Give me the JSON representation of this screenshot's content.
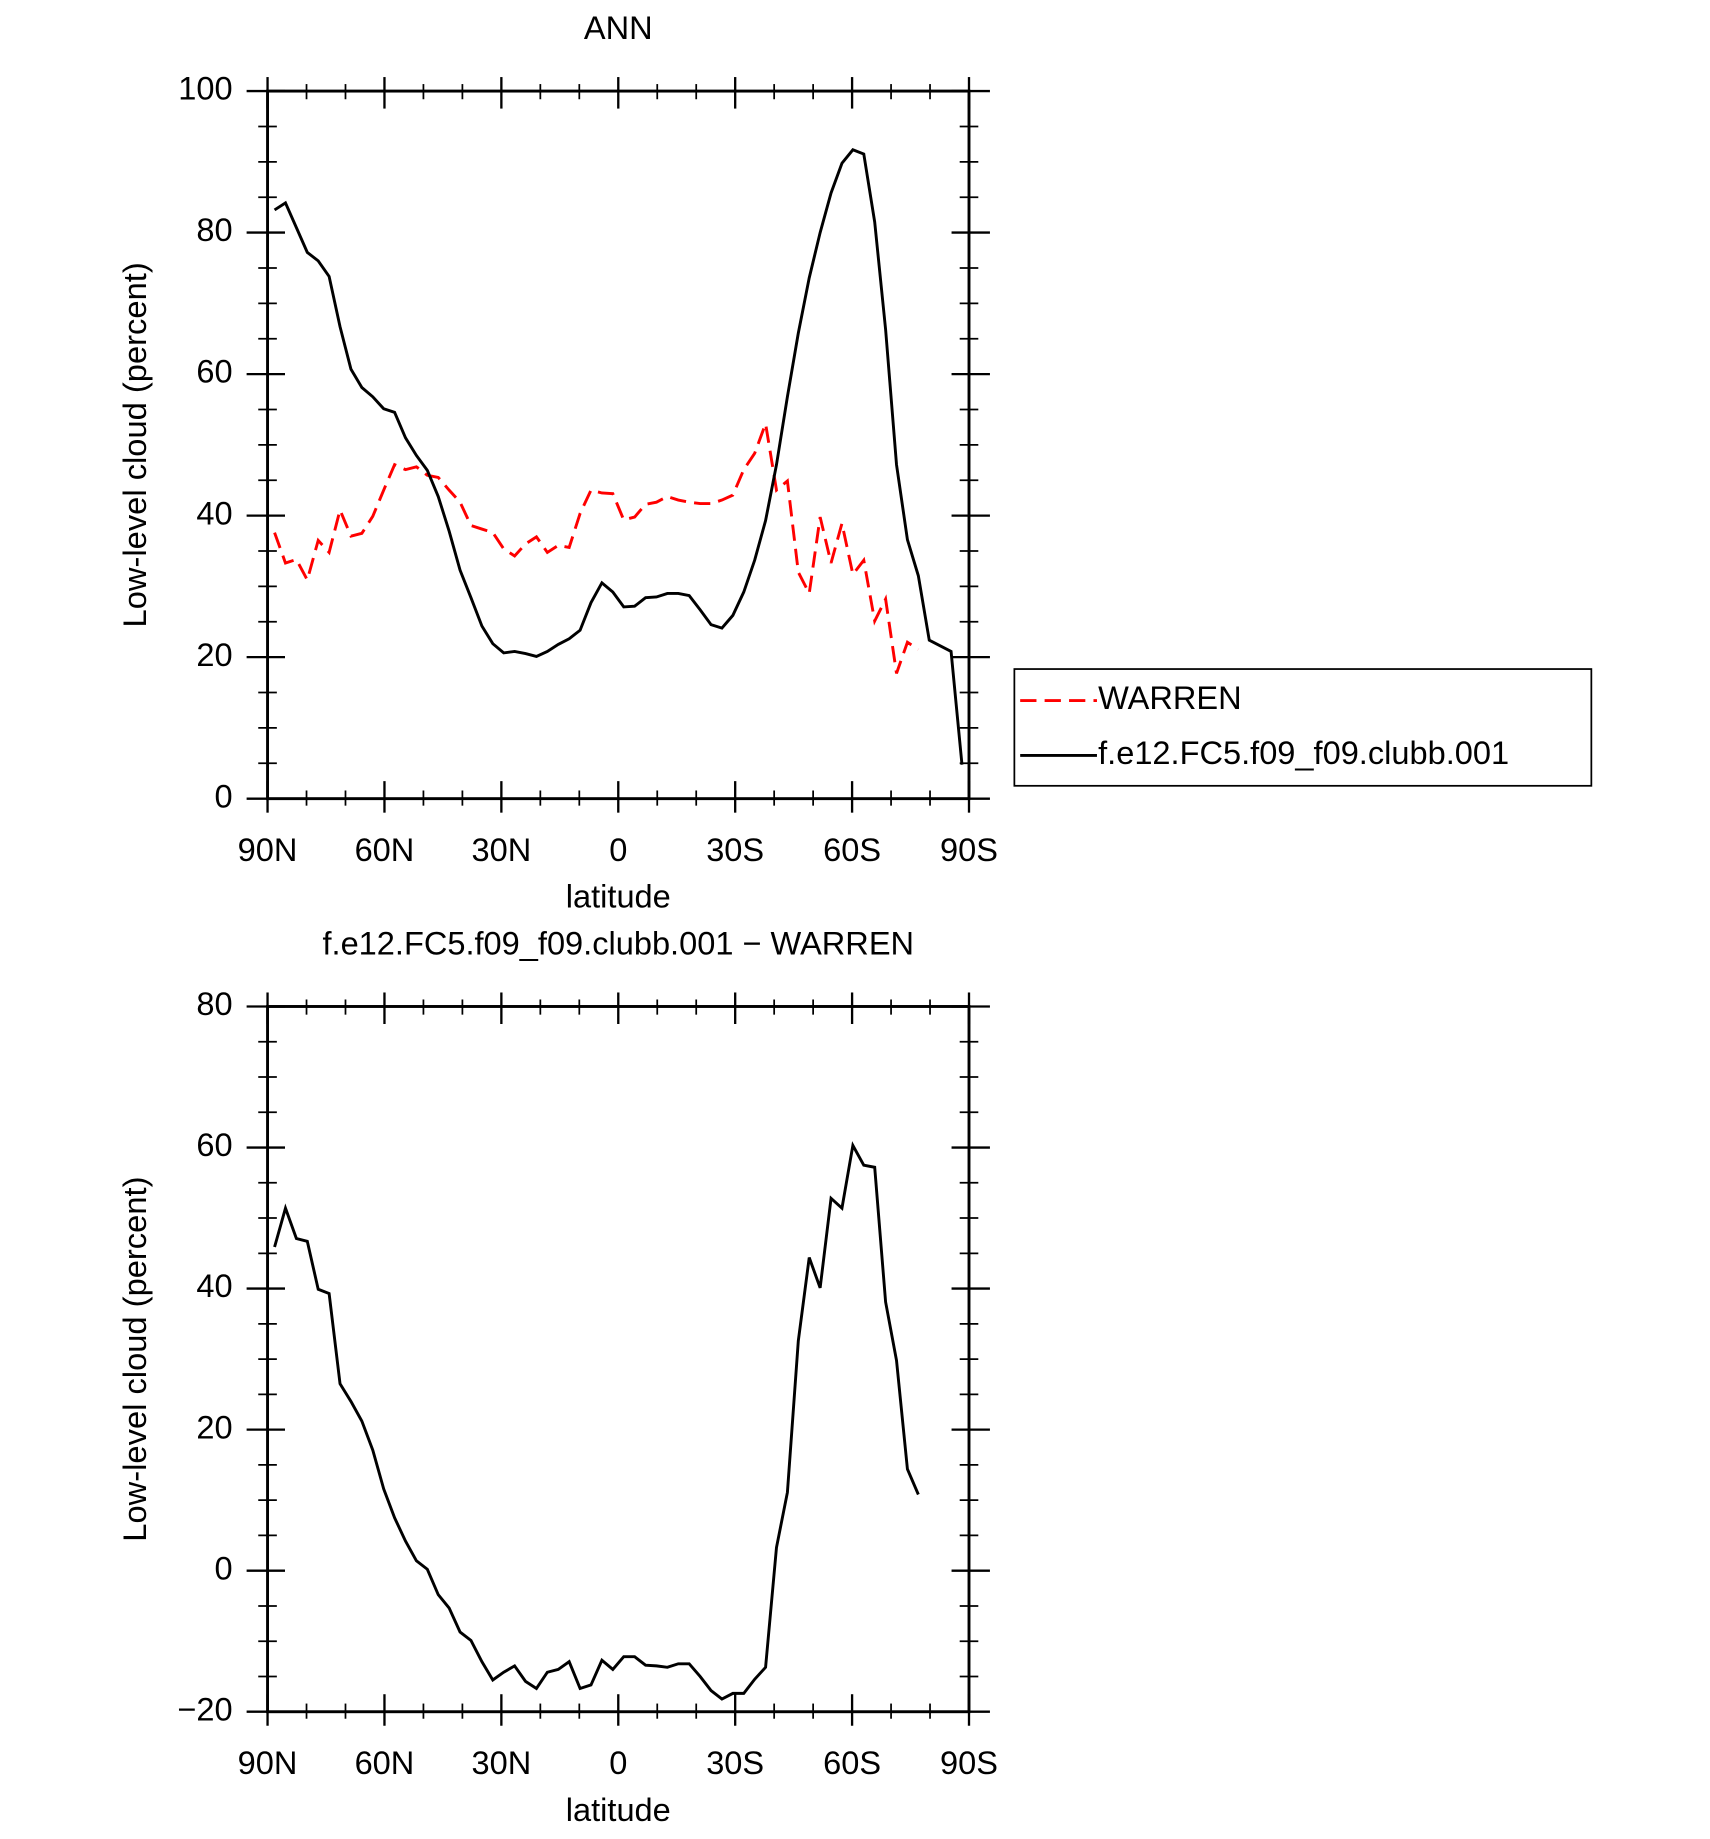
{
  "chart_data": [
    {
      "type": "line",
      "title": "ANN",
      "xlabel": "latitude",
      "ylabel": "Low-level cloud (percent)",
      "x": [
        88.2,
        85.4,
        82.6,
        79.8,
        77,
        74.2,
        71.4,
        68.6,
        65.8,
        63,
        60.2,
        57.4,
        54.6,
        51.8,
        49,
        46.2,
        43.4,
        40.6,
        37.8,
        35,
        32.2,
        29.4,
        26.6,
        23.8,
        21,
        18.2,
        15.4,
        12.6,
        9.8,
        7,
        4.2,
        1.4,
        -1.4,
        -4.2,
        -7,
        -9.8,
        -12.6,
        -15.4,
        -18.2,
        -21,
        -23.8,
        -26.6,
        -29.4,
        -32.2,
        -35,
        -37.8,
        -40.6,
        -43.4,
        -46.2,
        -49,
        -51.8,
        -54.6,
        -57.4,
        -60.2,
        -63,
        -65.8,
        -68.6,
        -71.4,
        -74.2,
        -77,
        -79.8,
        -82.6,
        -85.4,
        -88.2
      ],
      "series": [
        {
          "name": "WARREN",
          "color": "#ff0000",
          "dashed": true,
          "values": [
            37.6,
            33.3,
            33.8,
            30.9,
            36.5,
            34.8,
            40.8,
            37.1,
            37.5,
            39.9,
            43.6,
            47.2,
            46.5,
            46.9,
            45.7,
            45.4,
            43.6,
            41.9,
            38.6,
            38.1,
            37.6,
            35.3,
            34.3,
            36,
            37,
            34.8,
            35.8,
            35.5,
            40.3,
            43.6,
            43.2,
            43.1,
            39.4,
            39.8,
            41.6,
            41.9,
            42.7,
            42.2,
            41.9,
            41.7,
            41.7,
            42.2,
            42.9,
            46.5,
            48.8,
            53,
            43.6,
            44.9,
            32,
            29,
            39.8,
            33.3,
            38.9,
            31.7,
            33.7,
            25.1,
            28.2,
            17.7,
            22.1,
            21.1,
            null,
            null,
            null,
            null
          ]
        },
        {
          "name": "f.e12.FC5.f09_f09.clubb.001",
          "color": "#000000",
          "dashed": false,
          "values": [
            83.2,
            84.2,
            80.7,
            77.2,
            76,
            73.8,
            66.7,
            60.7,
            58.1,
            56.8,
            55.1,
            54.6,
            51,
            48.5,
            46.4,
            42.7,
            37.8,
            32.3,
            28.4,
            24.4,
            21.9,
            20.6,
            20.8,
            20.5,
            20.1,
            20.8,
            21.8,
            22.6,
            23.8,
            27.7,
            30.5,
            29.2,
            27.1,
            27.2,
            28.4,
            28.5,
            29,
            29,
            28.7,
            26.7,
            24.6,
            24.1,
            25.9,
            29.2,
            33.7,
            39.3,
            47.2,
            56.8,
            65.8,
            73.6,
            80,
            85.6,
            89.8,
            91.7,
            91.1,
            81.5,
            66.3,
            47.2,
            36.6,
            31.5,
            22.4,
            21.6,
            20.8,
            4.8
          ]
        }
      ],
      "xlim": [
        90,
        -90
      ],
      "xticks": [
        {
          "value": 90,
          "label": "90N"
        },
        {
          "value": 60,
          "label": "60N"
        },
        {
          "value": 30,
          "label": "30N"
        },
        0,
        {
          "value": -30,
          "label": "30S"
        },
        {
          "value": -60,
          "label": "60S"
        },
        {
          "value": -90,
          "label": "90S"
        }
      ],
      "xminorticks": [
        80,
        70,
        50,
        40,
        20,
        10,
        -10,
        -20,
        -40,
        -50,
        -70,
        -80
      ],
      "ylim": [
        0,
        100
      ],
      "yticks": [
        0,
        20,
        40,
        60,
        80,
        100
      ],
      "yminorticks": [
        5,
        10,
        15,
        25,
        30,
        35,
        45,
        50,
        55,
        65,
        70,
        75,
        85,
        90,
        95
      ],
      "legend": "right"
    },
    {
      "type": "line",
      "title": "f.e12.FC5.f09_f09.clubb.001 − WARREN",
      "xlabel": "latitude",
      "ylabel": "Low-level cloud (percent)",
      "x": [
        88.2,
        85.4,
        82.6,
        79.8,
        77,
        74.2,
        71.4,
        68.6,
        65.8,
        63,
        60.2,
        57.4,
        54.6,
        51.8,
        49,
        46.2,
        43.4,
        40.6,
        37.8,
        35,
        32.2,
        29.4,
        26.6,
        23.8,
        21,
        18.2,
        15.4,
        12.6,
        9.8,
        7,
        4.2,
        1.4,
        -1.4,
        -4.2,
        -7,
        -9.8,
        -12.6,
        -15.4,
        -18.2,
        -21,
        -23.8,
        -26.6,
        -29.4,
        -32.2,
        -35,
        -37.8,
        -40.6,
        -43.4,
        -46.2,
        -49,
        -51.8,
        -54.6,
        -57.4,
        -60.2,
        -63,
        -65.8,
        -68.6,
        -71.4,
        -74.2,
        -77
      ],
      "series": [
        {
          "color": "#000000",
          "dashed": false,
          "values": [
            45.9,
            51.4,
            47.1,
            46.7,
            39.9,
            39.3,
            26.5,
            24,
            21.2,
            17.1,
            11.6,
            7.5,
            4.2,
            1.4,
            0.2,
            -3.4,
            -5.3,
            -8.7,
            -9.9,
            -12.9,
            -15.5,
            -14.4,
            -13.5,
            -15.7,
            -16.7,
            -14.4,
            -14,
            -12.9,
            -16.7,
            -16.2,
            -12.7,
            -14,
            -12.2,
            -12.2,
            -13.4,
            -13.5,
            -13.7,
            -13.2,
            -13.2,
            -15,
            -17,
            -18.2,
            -17.4,
            -17.4,
            -15.4,
            -13.7,
            3.3,
            11.1,
            32.6,
            44.4,
            40.1,
            52.8,
            51.4,
            60.3,
            57.5,
            57.2,
            38.1,
            29.8,
            14.4,
            10.8
          ]
        }
      ],
      "xlim": [
        90,
        -90
      ],
      "xticks": [
        {
          "value": 90,
          "label": "90N"
        },
        {
          "value": 60,
          "label": "60N"
        },
        {
          "value": 30,
          "label": "30N"
        },
        0,
        {
          "value": -30,
          "label": "30S"
        },
        {
          "value": -60,
          "label": "60S"
        },
        {
          "value": -90,
          "label": "90S"
        }
      ],
      "xminorticks": [
        80,
        70,
        50,
        40,
        20,
        10,
        -10,
        -20,
        -40,
        -50,
        -70,
        -80
      ],
      "ylim": [
        -20,
        80
      ],
      "yticks": [
        {
          "value": -20,
          "label": "−20"
        },
        0,
        20,
        40,
        60,
        80
      ],
      "yminorticks": [
        -15,
        -10,
        -5,
        5,
        10,
        15,
        25,
        30,
        35,
        45,
        50,
        55,
        65,
        70,
        75
      ]
    }
  ]
}
